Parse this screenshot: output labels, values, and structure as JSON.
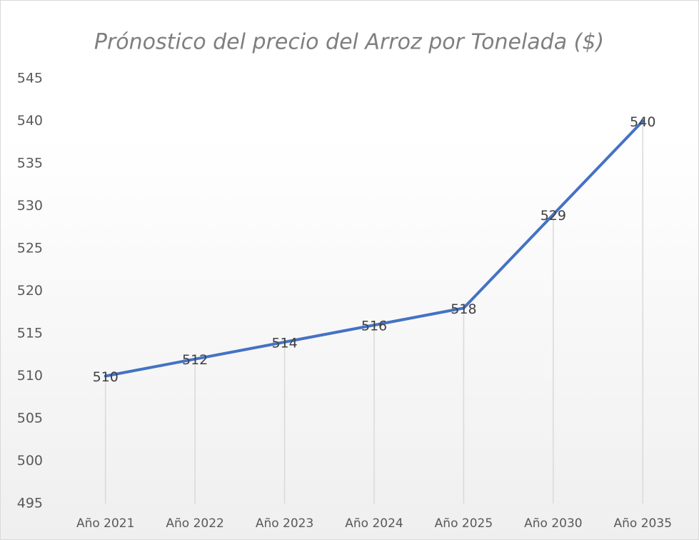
{
  "chart_data": {
    "type": "line",
    "title": "Prónostico del precio del Arroz por Tonelada ($)",
    "categories": [
      "Año 2021",
      "Año 2022",
      "Año 2023",
      "Año 2024",
      "Año 2025",
      "Año 2030",
      "Año 2035"
    ],
    "values": [
      510,
      512,
      514,
      516,
      518,
      529,
      540
    ],
    "color": "#4472c4",
    "ylim": [
      495,
      545
    ],
    "yticks": [
      495,
      500,
      505,
      510,
      515,
      520,
      525,
      530,
      535,
      540,
      545
    ],
    "grid": false,
    "drop_lines": true,
    "data_labels": true
  }
}
